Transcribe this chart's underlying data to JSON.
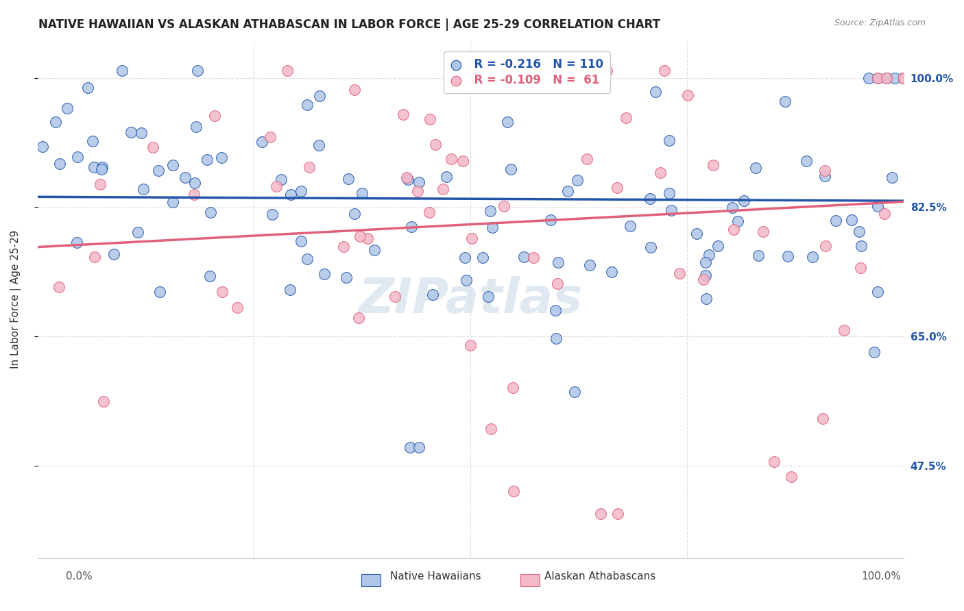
{
  "title": "NATIVE HAWAIIAN VS ALASKAN ATHABASCAN IN LABOR FORCE | AGE 25-29 CORRELATION CHART",
  "source": "Source: ZipAtlas.com",
  "ylabel": "In Labor Force | Age 25-29",
  "xlim": [
    0.0,
    1.0
  ],
  "ylim": [
    0.35,
    1.05
  ],
  "ytick_vals": [
    1.0,
    0.825,
    0.65,
    0.475
  ],
  "ytick_labels": [
    "100.0%",
    "82.5%",
    "65.0%",
    "47.5%"
  ],
  "legend_blue_R": "-0.216",
  "legend_blue_N": "110",
  "legend_pink_R": "-0.109",
  "legend_pink_N": " 61",
  "blue_face_color": "#aec6e8",
  "pink_face_color": "#f4b8c8",
  "blue_edge_color": "#2255aa",
  "pink_edge_color": "#e0607a",
  "blue_line_color": "#2255aa",
  "pink_line_color": "#e0607a",
  "grid_color": "#dddddd",
  "watermark": "ZIPatlas",
  "background_color": "#ffffff",
  "title_fontsize": 12,
  "source_fontsize": 9,
  "tick_label_color": "#2255aa"
}
